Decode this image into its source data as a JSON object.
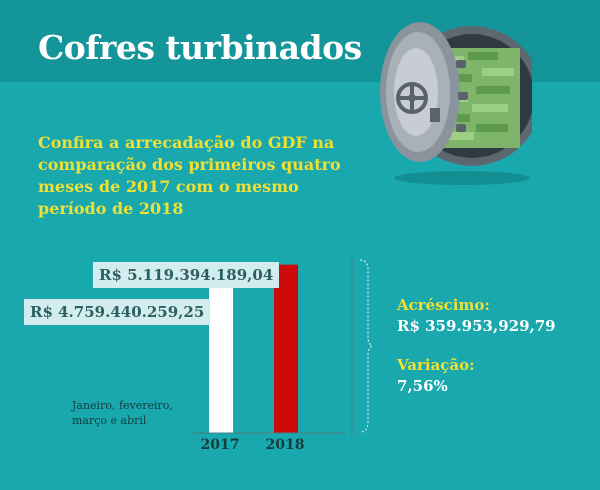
{
  "header": {
    "title": "Cofres turbinados",
    "subtitle": "Confira a arrecadação do GDF na comparação dos primeiros quatro meses de 2017 com o mesmo período de 2018"
  },
  "stats": {
    "increase_label": "Acréscimo:",
    "increase_value": "R$ 359.953,929,79",
    "variation_label": "Variação:",
    "variation_value": "7,56%"
  },
  "chart_data": {
    "type": "bar",
    "categories": [
      "2017",
      "2018"
    ],
    "values": [
      4759440259.25,
      5119394189.04
    ],
    "value_labels": [
      "R$ 4.759.440.259,25",
      "R$ 5.119.394.189,04"
    ],
    "colors": [
      "#ffffff",
      "#cc0a0a"
    ],
    "period_label": "Janeiro, fevereiro, março e abril",
    "ylim": [
      0,
      5200000000
    ],
    "grid": false,
    "legend": "none"
  },
  "colors": {
    "background": "#19a8ad",
    "header_band": "#14959a",
    "highlight": "#f0e034",
    "label_box": "#d3eced"
  },
  "icons": {
    "vault": "open-vault-with-money-icon"
  }
}
